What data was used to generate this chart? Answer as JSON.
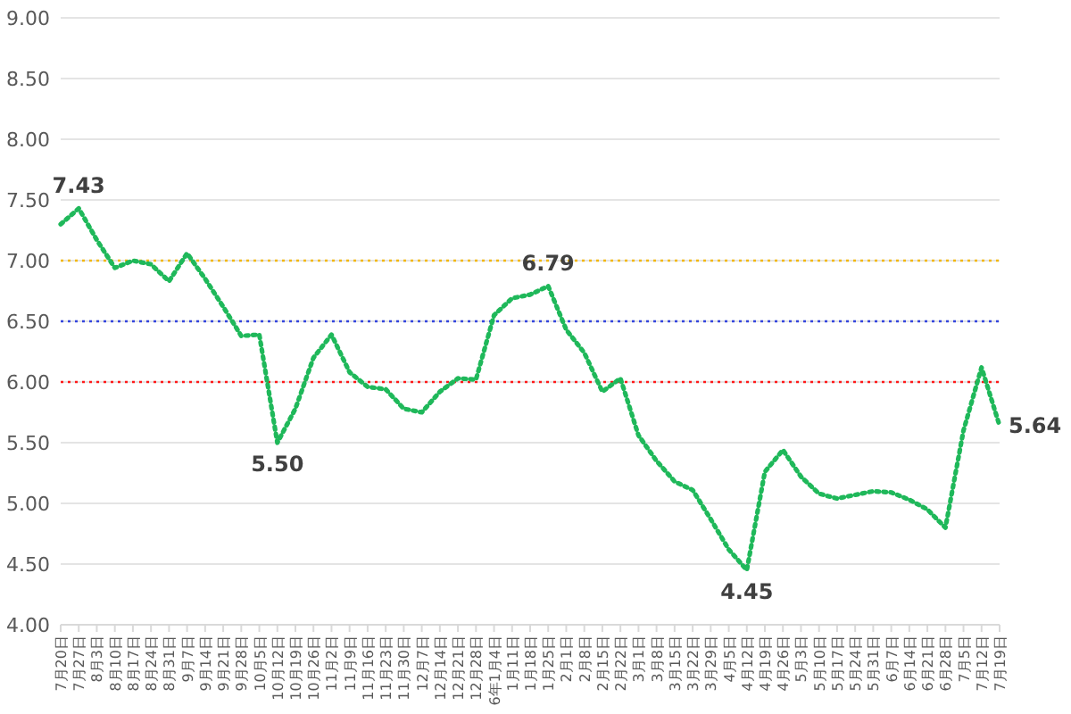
{
  "chart_data": {
    "type": "line",
    "categories": [
      "7月20日",
      "7月27日",
      "8月3日",
      "8月10日",
      "8月17日",
      "8月24日",
      "8月31日",
      "9月7日",
      "9月14日",
      "9月21日",
      "9月28日",
      "10月5日",
      "10月12日",
      "10月19日",
      "10月26日",
      "11月2日",
      "11月9日",
      "11月16日",
      "11月23日",
      "11月30日",
      "12月7日",
      "12月14日",
      "12月21日",
      "12月28日",
      "6年1月4日",
      "1月11日",
      "1月18日",
      "1月25日",
      "2月1日",
      "2月8日",
      "2月15日",
      "2月22日",
      "3月1日",
      "3月8日",
      "3月15日",
      "3月22日",
      "3月29日",
      "4月5日",
      "4月12日",
      "4月19日",
      "4月26日",
      "5月3日",
      "5月10日",
      "5月17日",
      "5月24日",
      "5月31日",
      "6月7日",
      "6月14日",
      "6月21日",
      "6月28日",
      "7月5日",
      "7月12日",
      "7月19日"
    ],
    "series": [
      {
        "color": "#1fb85a",
        "values": [
          7.3,
          7.43,
          7.17,
          6.94,
          7.0,
          6.97,
          6.83,
          7.06,
          6.85,
          6.62,
          6.38,
          6.39,
          5.5,
          5.78,
          6.2,
          6.39,
          6.08,
          5.96,
          5.94,
          5.78,
          5.75,
          5.92,
          6.03,
          6.02,
          6.55,
          6.69,
          6.72,
          6.79,
          6.43,
          6.24,
          5.92,
          6.03,
          5.56,
          5.35,
          5.18,
          5.11,
          4.87,
          4.62,
          4.45,
          5.26,
          5.44,
          5.22,
          5.08,
          5.04,
          5.07,
          5.1,
          5.09,
          5.03,
          4.95,
          4.8,
          5.6,
          6.12,
          5.64
        ]
      }
    ],
    "line_style": "dotted",
    "marker": "none",
    "grid": "y",
    "ylim": [
      4,
      9
    ],
    "yticks": [
      {
        "value": 4,
        "label": "4.00"
      },
      {
        "value": 4.5,
        "label": "4.50"
      },
      {
        "value": 5,
        "label": "5.00"
      },
      {
        "value": 5.5,
        "label": "5.50"
      },
      {
        "value": 6,
        "label": "6.00"
      },
      {
        "value": 6.5,
        "label": "6.50"
      },
      {
        "value": 7,
        "label": "7.00"
      },
      {
        "value": 7.5,
        "label": "7.50"
      },
      {
        "value": 8,
        "label": "8.00"
      },
      {
        "value": 8.5,
        "label": "8.50"
      },
      {
        "value": 9,
        "label": "9.00"
      }
    ],
    "ref_lines": [
      {
        "axis": "y",
        "value": 7,
        "color": "#f2b705",
        "line_style": "dotted"
      },
      {
        "axis": "y",
        "value": 6.5,
        "color": "#3344dd",
        "line_style": "dotted"
      },
      {
        "axis": "y",
        "value": 6,
        "color": "#ff1a1a",
        "line_style": "dotted"
      }
    ],
    "annotations": [
      {
        "text": "7.43",
        "x": "7月27日",
        "y": 7.43
      },
      {
        "text": "5.50",
        "x": "10月12日",
        "y": 5.5
      },
      {
        "text": "6.79",
        "x": "1月25日",
        "y": 6.79
      },
      {
        "text": "4.45",
        "x": "4月12日",
        "y": 4.45
      },
      {
        "text": "5.64",
        "x": "7月19日",
        "y": 5.64
      }
    ]
  }
}
